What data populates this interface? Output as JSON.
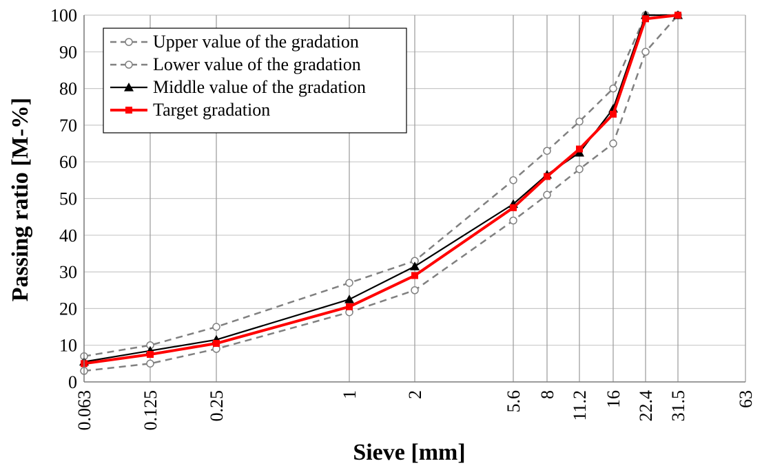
{
  "chart_data": {
    "type": "line",
    "xlabel": "Sieve [mm]",
    "ylabel": "Passing ratio [M-%]",
    "x_scale": "log-like (sieve sizes)",
    "x_ticks": [
      "0.063",
      "0.125",
      "0.25",
      "1",
      "2",
      "5.6",
      "8",
      "11.2",
      "16",
      "22.4",
      "31.5",
      "63"
    ],
    "ylim": [
      0,
      100
    ],
    "y_ticks": [
      0,
      10,
      20,
      30,
      40,
      50,
      60,
      70,
      80,
      90,
      100
    ],
    "grid": true,
    "legend_position": "top-left",
    "series": [
      {
        "name": "Upper value of the gradation",
        "style": "dashed",
        "marker": "open-circle",
        "color": "#808080",
        "x": [
          "0.063",
          "0.125",
          "0.25",
          "1",
          "2",
          "5.6",
          "8",
          "11.2",
          "16",
          "22.4",
          "31.5"
        ],
        "values": [
          7,
          10,
          15,
          27,
          33,
          55,
          63,
          71,
          80,
          100,
          100
        ]
      },
      {
        "name": "Lower value of the gradation",
        "style": "dashed",
        "marker": "open-circle",
        "color": "#808080",
        "x": [
          "0.063",
          "0.125",
          "0.25",
          "1",
          "2",
          "5.6",
          "8",
          "11.2",
          "16",
          "22.4",
          "31.5"
        ],
        "values": [
          3,
          5,
          9,
          19,
          25,
          44,
          51,
          58,
          65,
          90,
          100
        ]
      },
      {
        "name": "Middle value of the gradation",
        "style": "solid",
        "marker": "filled-triangle",
        "color": "#000000",
        "x": [
          "0.063",
          "0.125",
          "0.25",
          "1",
          "2",
          "5.6",
          "8",
          "11.2",
          "16",
          "22.4",
          "31.5"
        ],
        "values": [
          5.5,
          8.5,
          11.5,
          22.5,
          31.5,
          48.5,
          56.5,
          62.5,
          74.5,
          100,
          100
        ]
      },
      {
        "name": "Target gradation",
        "style": "solid",
        "marker": "filled-square",
        "color": "#ff0000",
        "x": [
          "0.063",
          "0.125",
          "0.25",
          "1",
          "2",
          "5.6",
          "8",
          "11.2",
          "16",
          "22.4",
          "31.5"
        ],
        "values": [
          5,
          7.5,
          10.5,
          20.5,
          29,
          47.5,
          56,
          63.5,
          73,
          99,
          100
        ]
      }
    ]
  }
}
